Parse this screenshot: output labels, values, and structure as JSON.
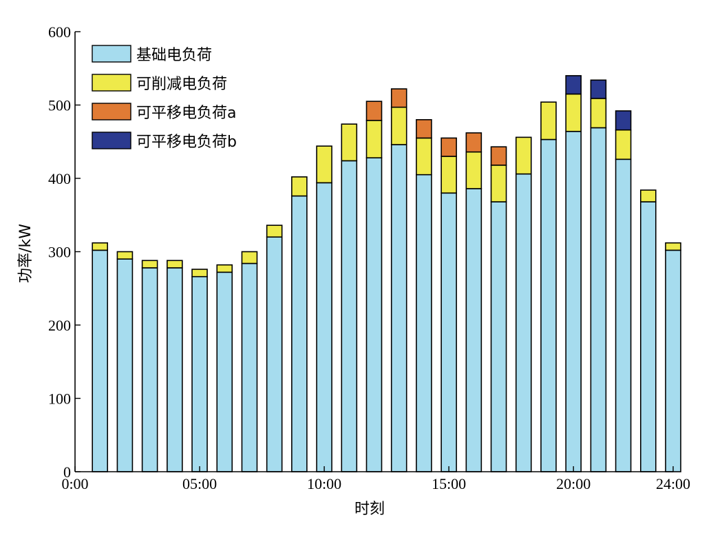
{
  "chart_data": {
    "type": "bar",
    "stacked": true,
    "xlabel": "时刻",
    "ylabel": "功率/kW",
    "ylim": [
      0,
      600
    ],
    "yticks": [
      0,
      100,
      200,
      300,
      400,
      500,
      600
    ],
    "xlim": [
      0,
      24
    ],
    "xticks": [
      {
        "value": 0,
        "label": "0:00"
      },
      {
        "value": 5,
        "label": "05:00"
      },
      {
        "value": 10,
        "label": "10:00"
      },
      {
        "value": 15,
        "label": "15:00"
      },
      {
        "value": 20,
        "label": "20:00"
      },
      {
        "value": 24,
        "label": "24:00"
      }
    ],
    "legend_position": "top-left",
    "x": [
      1,
      2,
      3,
      4,
      5,
      6,
      7,
      8,
      9,
      10,
      11,
      12,
      13,
      14,
      15,
      16,
      17,
      18,
      19,
      20,
      21,
      22,
      23,
      24
    ],
    "series": [
      {
        "name": "基础电负荷",
        "color": "#a6dcee",
        "values": [
          302,
          290,
          278,
          278,
          266,
          272,
          284,
          320,
          376,
          394,
          424,
          428,
          446,
          405,
          380,
          386,
          368,
          406,
          453,
          464,
          469,
          426,
          368,
          302
        ]
      },
      {
        "name": "可削减电负荷",
        "color": "#eeea4a",
        "values": [
          10,
          10,
          10,
          10,
          10,
          10,
          16,
          16,
          26,
          50,
          50,
          51,
          51,
          50,
          50,
          50,
          50,
          50,
          51,
          51,
          40,
          40,
          16,
          10
        ]
      },
      {
        "name": "可平移电负荷a",
        "color": "#e07b35",
        "values": [
          0,
          0,
          0,
          0,
          0,
          0,
          0,
          0,
          0,
          0,
          0,
          26,
          25,
          25,
          25,
          26,
          25,
          0,
          0,
          0,
          0,
          0,
          0,
          0
        ]
      },
      {
        "name": "可平移电负荷b",
        "color": "#2b3a8f",
        "values": [
          0,
          0,
          0,
          0,
          0,
          0,
          0,
          0,
          0,
          0,
          0,
          0,
          0,
          0,
          0,
          0,
          0,
          0,
          0,
          25,
          25,
          26,
          0,
          0
        ]
      }
    ]
  }
}
